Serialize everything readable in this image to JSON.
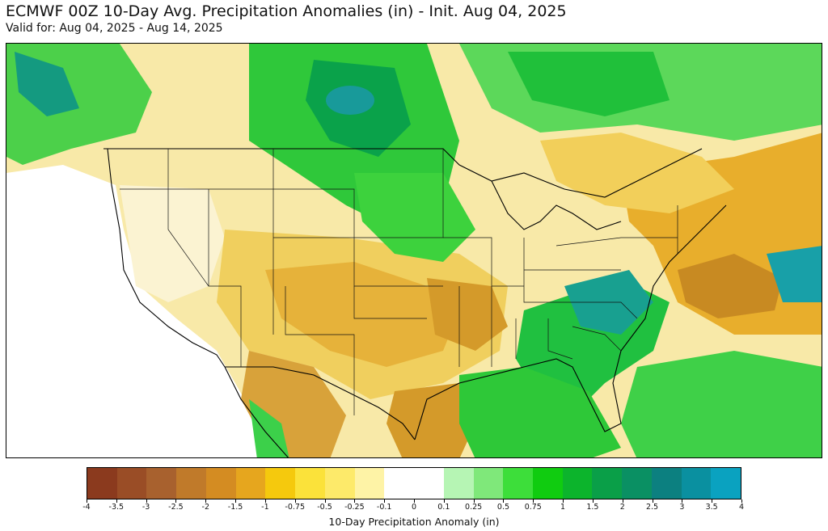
{
  "header": {
    "title": "ECMWF 00Z 10-Day Avg. Precipitation Anomalies (in) - Init. Aug 04, 2025",
    "subtitle": "Valid for: Aug 04, 2025 - Aug 14, 2025"
  },
  "colorbar": {
    "label": "10-Day Precipitation Anomaly (in)",
    "ticks": [
      "-4",
      "-3.5",
      "-3",
      "-2.5",
      "-2",
      "-1.5",
      "-1",
      "-0.75",
      "-0.5",
      "-0.25",
      "-0.1",
      "0",
      "0.1",
      "0.25",
      "0.5",
      "0.75",
      "1",
      "1.5",
      "2",
      "2.5",
      "3",
      "3.5",
      "4"
    ],
    "colors": [
      "#8b3a1e",
      "#9a4d26",
      "#a8612e",
      "#c07a2a",
      "#d48c22",
      "#e6a61e",
      "#f5c90d",
      "#fbe23a",
      "#fdea6a",
      "#fef3a6",
      "#ffffff",
      "#ffffff",
      "#b6f5b4",
      "#7fe87a",
      "#3dde3a",
      "#10cc10",
      "#0cb42c",
      "#0a9f48",
      "#0a9063",
      "#0c8080",
      "#0a90a0",
      "#0aa2c0"
    ]
  },
  "map": {
    "region": "Continental United States",
    "legend_colors": {
      "dry_strong": "#c98a1e",
      "dry_moderate": "#e6b23a",
      "dry_light": "#f5d870",
      "dry_faint": "#fbeeb0",
      "neutral": "#ffffff",
      "wet_light": "#9ee89a",
      "wet_moderate": "#2fd02f",
      "wet_strong": "#0aa24a",
      "wet_very": "#18a0a8"
    }
  }
}
